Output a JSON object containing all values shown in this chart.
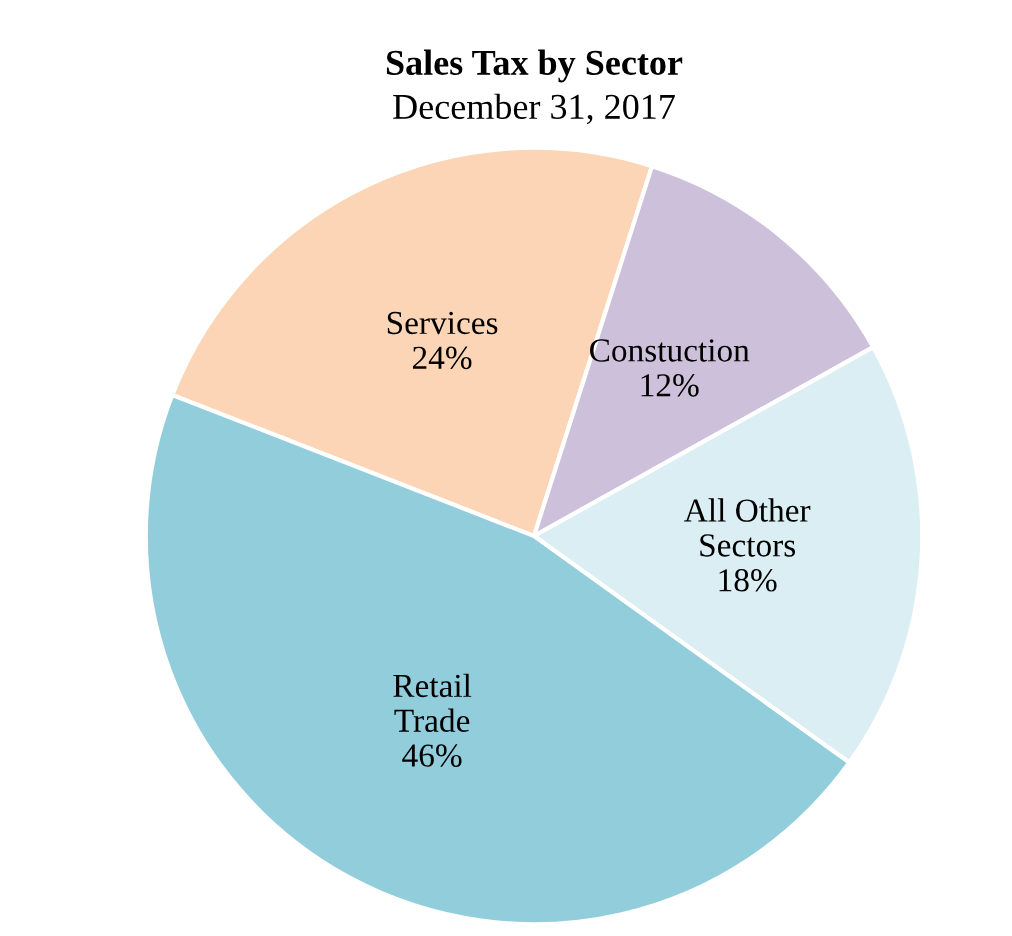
{
  "chart_data": {
    "type": "pie",
    "title": "Sales Tax by Sector",
    "subtitle": "December 31, 2017",
    "categories": [
      "Services",
      "Constuction",
      "All Other\nSectors",
      "Retail\nTrade"
    ],
    "values": [
      24,
      12,
      18,
      46
    ],
    "value_labels": [
      "24%",
      "12%",
      "18%",
      "46%"
    ],
    "colors": [
      "#fbd5b5",
      "#ccc0da",
      "#dbeef4",
      "#92cddc"
    ]
  }
}
